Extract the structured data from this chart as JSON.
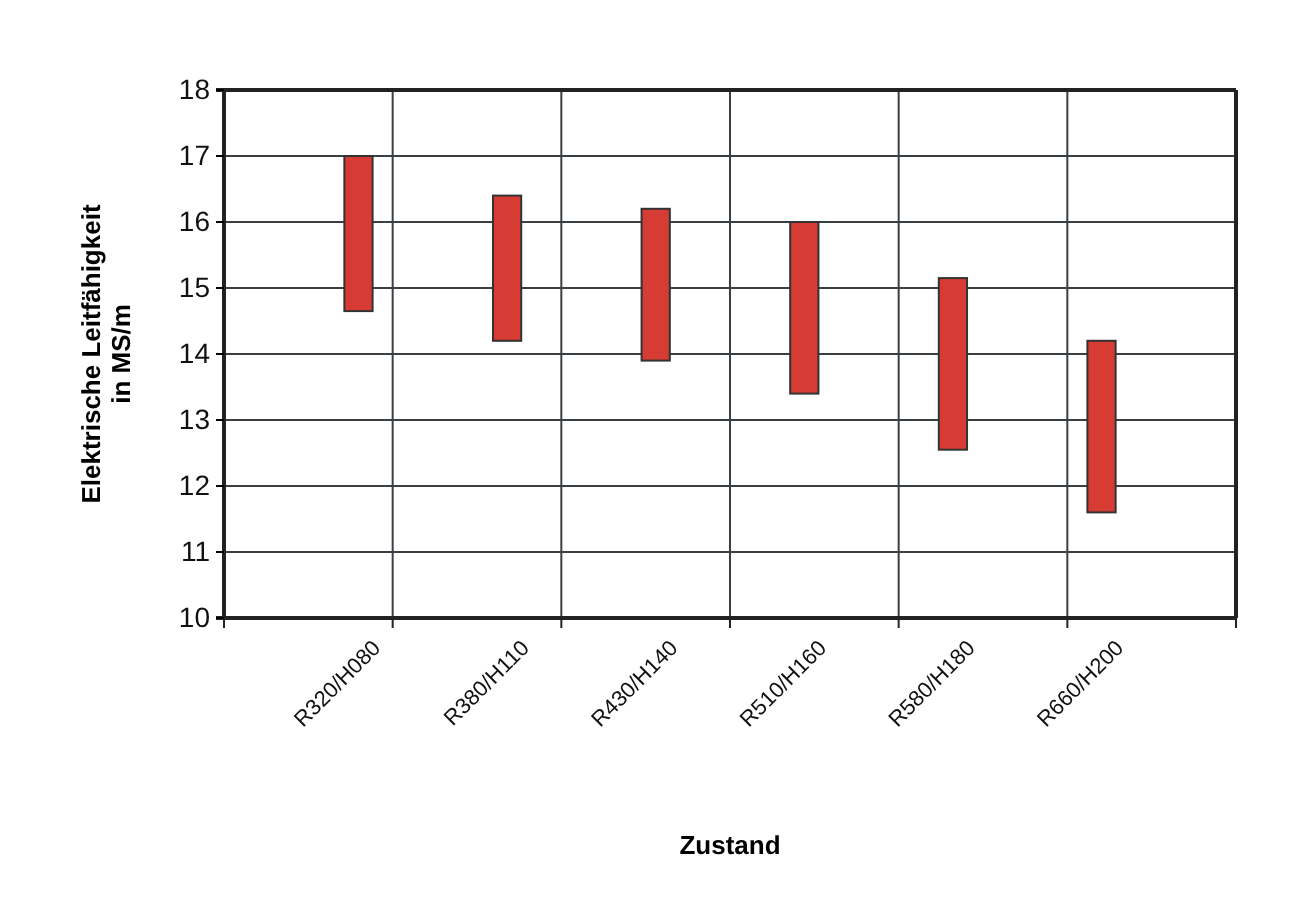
{
  "chart_data": {
    "type": "bar",
    "xlabel": "Zustand",
    "ylabel": "Elektrische Leitfähigkeit\nin MS/m",
    "categories": [
      "R320/H080",
      "R380/H110",
      "R430/H140",
      "R510/H160",
      "R580/H180",
      "R660/H200"
    ],
    "base": [
      14.65,
      14.2,
      13.9,
      13.4,
      12.55,
      11.6
    ],
    "values": [
      2.35,
      2.2,
      2.3,
      2.6,
      2.6,
      2.6
    ],
    "color": "#d63c34",
    "ylim": [
      10,
      18
    ],
    "yticks": [
      10,
      11,
      12,
      13,
      14,
      15,
      16,
      17,
      18
    ],
    "grid": true
  }
}
